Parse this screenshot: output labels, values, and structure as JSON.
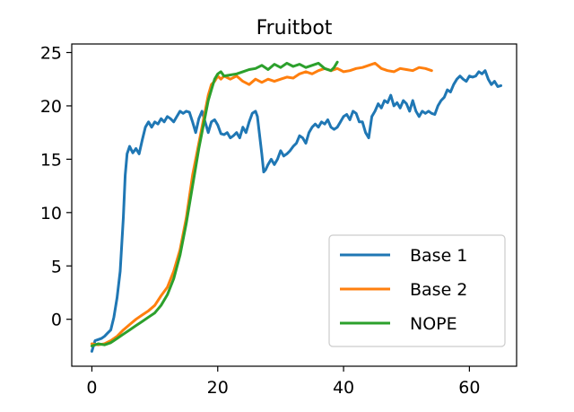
{
  "chart_data": {
    "type": "line",
    "title": "Fruitbot",
    "xlabel": "",
    "ylabel": "",
    "xlim": [
      -3.2,
      67.5
    ],
    "ylim": [
      -4.4,
      25.8
    ],
    "xticks": [
      0,
      20,
      40,
      60
    ],
    "yticks": [
      0,
      5,
      10,
      15,
      20,
      25
    ],
    "grid": false,
    "legend_position": "lower right",
    "series": [
      {
        "name": "Base 1",
        "color": "#1f77b4",
        "points": [
          [
            0,
            -3.0
          ],
          [
            0.5,
            -2.0
          ],
          [
            1,
            -1.9
          ],
          [
            1.5,
            -1.8
          ],
          [
            2,
            -1.6
          ],
          [
            2.5,
            -1.3
          ],
          [
            3,
            -1.0
          ],
          [
            3.5,
            0.2
          ],
          [
            4,
            2.0
          ],
          [
            4.5,
            4.5
          ],
          [
            5,
            9.5
          ],
          [
            5.3,
            13.5
          ],
          [
            5.6,
            15.5
          ],
          [
            6,
            16.2
          ],
          [
            6.5,
            15.6
          ],
          [
            7,
            16.0
          ],
          [
            7.5,
            15.5
          ],
          [
            8,
            16.8
          ],
          [
            8.5,
            18.0
          ],
          [
            9,
            18.5
          ],
          [
            9.5,
            18.0
          ],
          [
            10,
            18.5
          ],
          [
            10.5,
            18.3
          ],
          [
            11,
            18.8
          ],
          [
            11.5,
            18.5
          ],
          [
            12,
            19.0
          ],
          [
            12.5,
            18.8
          ],
          [
            13,
            18.5
          ],
          [
            13.5,
            19.0
          ],
          [
            14,
            19.5
          ],
          [
            14.5,
            19.3
          ],
          [
            15,
            19.5
          ],
          [
            15.5,
            19.4
          ],
          [
            16,
            18.5
          ],
          [
            16.5,
            17.5
          ],
          [
            17,
            18.8
          ],
          [
            17.5,
            19.5
          ],
          [
            18,
            18.5
          ],
          [
            18.5,
            17.5
          ],
          [
            19,
            18.5
          ],
          [
            19.5,
            18.7
          ],
          [
            20,
            18.2
          ],
          [
            20.5,
            17.4
          ],
          [
            21,
            17.3
          ],
          [
            21.5,
            17.5
          ],
          [
            22,
            17.0
          ],
          [
            22.5,
            17.2
          ],
          [
            23,
            17.5
          ],
          [
            23.5,
            17.0
          ],
          [
            24,
            18.0
          ],
          [
            24.5,
            17.5
          ],
          [
            25,
            18.5
          ],
          [
            25.5,
            19.3
          ],
          [
            26,
            19.5
          ],
          [
            26.3,
            19.0
          ],
          [
            26.6,
            17.5
          ],
          [
            27,
            15.5
          ],
          [
            27.3,
            13.8
          ],
          [
            27.6,
            14.0
          ],
          [
            28,
            14.5
          ],
          [
            28.5,
            15.0
          ],
          [
            29,
            14.5
          ],
          [
            29.5,
            15.0
          ],
          [
            30,
            15.8
          ],
          [
            30.5,
            15.3
          ],
          [
            31,
            15.5
          ],
          [
            31.5,
            15.8
          ],
          [
            32,
            16.2
          ],
          [
            32.5,
            16.5
          ],
          [
            33,
            17.2
          ],
          [
            33.5,
            17.0
          ],
          [
            34,
            16.5
          ],
          [
            34.5,
            17.5
          ],
          [
            35,
            18.0
          ],
          [
            35.5,
            18.3
          ],
          [
            36,
            18.0
          ],
          [
            36.5,
            18.5
          ],
          [
            37,
            18.3
          ],
          [
            37.5,
            18.7
          ],
          [
            38,
            18.0
          ],
          [
            38.5,
            17.8
          ],
          [
            39,
            18.0
          ],
          [
            39.5,
            18.5
          ],
          [
            40,
            19.0
          ],
          [
            40.5,
            19.2
          ],
          [
            41,
            18.7
          ],
          [
            41.5,
            19.5
          ],
          [
            42,
            19.3
          ],
          [
            42.5,
            18.5
          ],
          [
            43,
            18.5
          ],
          [
            43.5,
            17.5
          ],
          [
            44,
            17.0
          ],
          [
            44.5,
            19.0
          ],
          [
            45,
            19.5
          ],
          [
            45.5,
            20.2
          ],
          [
            46,
            19.8
          ],
          [
            46.5,
            20.5
          ],
          [
            47,
            20.3
          ],
          [
            47.5,
            21.0
          ],
          [
            48,
            20.0
          ],
          [
            48.5,
            20.3
          ],
          [
            49,
            19.8
          ],
          [
            49.5,
            20.5
          ],
          [
            50,
            20.2
          ],
          [
            50.5,
            19.5
          ],
          [
            51,
            20.5
          ],
          [
            51.5,
            19.5
          ],
          [
            52,
            19.0
          ],
          [
            52.5,
            19.5
          ],
          [
            53,
            19.3
          ],
          [
            53.5,
            19.5
          ],
          [
            54,
            19.3
          ],
          [
            54.5,
            19.2
          ],
          [
            55,
            20.0
          ],
          [
            55.5,
            20.5
          ],
          [
            56,
            20.8
          ],
          [
            56.5,
            21.5
          ],
          [
            57,
            21.3
          ],
          [
            57.5,
            22.0
          ],
          [
            58,
            22.5
          ],
          [
            58.5,
            22.8
          ],
          [
            59,
            22.5
          ],
          [
            59.5,
            22.3
          ],
          [
            60,
            22.8
          ],
          [
            60.5,
            22.7
          ],
          [
            61,
            22.8
          ],
          [
            61.5,
            23.2
          ],
          [
            62,
            23.0
          ],
          [
            62.5,
            23.3
          ],
          [
            63,
            22.5
          ],
          [
            63.5,
            22.0
          ],
          [
            64,
            22.3
          ],
          [
            64.5,
            21.8
          ],
          [
            65,
            21.9
          ]
        ]
      },
      {
        "name": "Base 2",
        "color": "#ff7f0e",
        "points": [
          [
            0,
            -2.3
          ],
          [
            1,
            -2.4
          ],
          [
            2,
            -2.3
          ],
          [
            3,
            -2.0
          ],
          [
            4,
            -1.6
          ],
          [
            5,
            -1.0
          ],
          [
            6,
            -0.5
          ],
          [
            7,
            0.0
          ],
          [
            8,
            0.4
          ],
          [
            9,
            0.8
          ],
          [
            10,
            1.3
          ],
          [
            11,
            2.2
          ],
          [
            12,
            3.0
          ],
          [
            13,
            4.5
          ],
          [
            14,
            6.5
          ],
          [
            15,
            9.5
          ],
          [
            16,
            13.5
          ],
          [
            17,
            16.5
          ],
          [
            18,
            19.5
          ],
          [
            18.5,
            21.0
          ],
          [
            19,
            22.0
          ],
          [
            19.5,
            22.3
          ],
          [
            20,
            22.8
          ],
          [
            20.5,
            22.5
          ],
          [
            21,
            22.8
          ],
          [
            22,
            22.5
          ],
          [
            23,
            22.8
          ],
          [
            24,
            22.3
          ],
          [
            25,
            22.0
          ],
          [
            26,
            22.5
          ],
          [
            27,
            22.2
          ],
          [
            28,
            22.5
          ],
          [
            29,
            22.3
          ],
          [
            30,
            22.5
          ],
          [
            31,
            22.7
          ],
          [
            32,
            22.6
          ],
          [
            33,
            23.0
          ],
          [
            34,
            23.2
          ],
          [
            35,
            23.0
          ],
          [
            36,
            23.3
          ],
          [
            37,
            23.5
          ],
          [
            38,
            23.3
          ],
          [
            39,
            23.5
          ],
          [
            40,
            23.2
          ],
          [
            41,
            23.3
          ],
          [
            42,
            23.5
          ],
          [
            43,
            23.6
          ],
          [
            44,
            23.8
          ],
          [
            45,
            24.0
          ],
          [
            46,
            23.5
          ],
          [
            47,
            23.3
          ],
          [
            48,
            23.2
          ],
          [
            49,
            23.5
          ],
          [
            50,
            23.4
          ],
          [
            51,
            23.3
          ],
          [
            52,
            23.6
          ],
          [
            53,
            23.5
          ],
          [
            54,
            23.3
          ]
        ]
      },
      {
        "name": "NOPE",
        "color": "#2ca02c",
        "points": [
          [
            0,
            -2.5
          ],
          [
            1,
            -2.3
          ],
          [
            2,
            -2.4
          ],
          [
            3,
            -2.2
          ],
          [
            4,
            -1.8
          ],
          [
            5,
            -1.4
          ],
          [
            6,
            -1.0
          ],
          [
            7,
            -0.6
          ],
          [
            8,
            -0.2
          ],
          [
            9,
            0.2
          ],
          [
            10,
            0.6
          ],
          [
            11,
            1.3
          ],
          [
            12,
            2.3
          ],
          [
            13,
            3.8
          ],
          [
            14,
            6.0
          ],
          [
            15,
            9.0
          ],
          [
            16,
            12.5
          ],
          [
            17,
            16.0
          ],
          [
            18,
            19.0
          ],
          [
            18.5,
            20.5
          ],
          [
            19,
            21.5
          ],
          [
            19.5,
            22.5
          ],
          [
            20,
            23.0
          ],
          [
            20.5,
            23.2
          ],
          [
            21,
            22.8
          ],
          [
            22,
            22.9
          ],
          [
            23,
            23.0
          ],
          [
            24,
            23.2
          ],
          [
            25,
            23.4
          ],
          [
            26,
            23.5
          ],
          [
            27,
            23.8
          ],
          [
            28,
            23.4
          ],
          [
            29,
            23.9
          ],
          [
            30,
            23.6
          ],
          [
            31,
            24.0
          ],
          [
            32,
            23.7
          ],
          [
            33,
            23.9
          ],
          [
            34,
            23.6
          ],
          [
            35,
            23.8
          ],
          [
            36,
            24.0
          ],
          [
            37,
            23.5
          ],
          [
            38,
            23.3
          ],
          [
            38.5,
            23.6
          ],
          [
            39,
            24.1
          ]
        ]
      }
    ]
  }
}
